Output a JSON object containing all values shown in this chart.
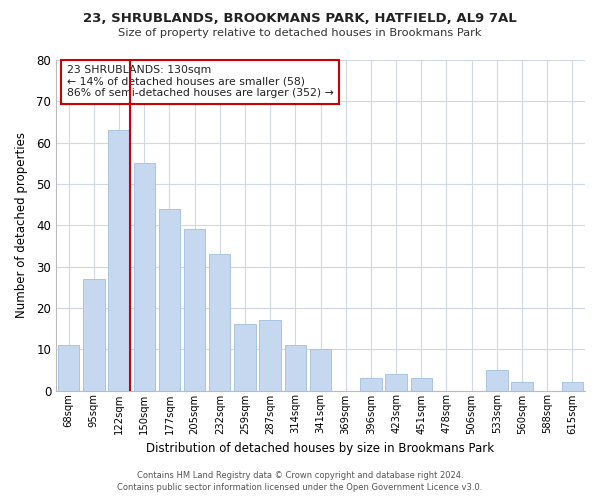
{
  "title": "23, SHRUBLANDS, BROOKMANS PARK, HATFIELD, AL9 7AL",
  "subtitle": "Size of property relative to detached houses in Brookmans Park",
  "xlabel": "Distribution of detached houses by size in Brookmans Park",
  "ylabel": "Number of detached properties",
  "categories": [
    "68sqm",
    "95sqm",
    "122sqm",
    "150sqm",
    "177sqm",
    "205sqm",
    "232sqm",
    "259sqm",
    "287sqm",
    "314sqm",
    "341sqm",
    "369sqm",
    "396sqm",
    "423sqm",
    "451sqm",
    "478sqm",
    "506sqm",
    "533sqm",
    "560sqm",
    "588sqm",
    "615sqm"
  ],
  "values": [
    11,
    27,
    63,
    55,
    44,
    39,
    33,
    16,
    17,
    11,
    10,
    0,
    3,
    4,
    3,
    0,
    0,
    5,
    2,
    0,
    2
  ],
  "bar_color": "#c5d8f0",
  "bar_edge_color": "#a8c4df",
  "highlight_index": 2,
  "highlight_line_color": "#cc0000",
  "ylim": [
    0,
    80
  ],
  "yticks": [
    0,
    10,
    20,
    30,
    40,
    50,
    60,
    70,
    80
  ],
  "annotation_title": "23 SHRUBLANDS: 130sqm",
  "annotation_line1": "← 14% of detached houses are smaller (58)",
  "annotation_line2": "86% of semi-detached houses are larger (352) →",
  "annotation_box_color": "#ffffff",
  "annotation_box_edge": "#cc0000",
  "footer1": "Contains HM Land Registry data © Crown copyright and database right 2024.",
  "footer2": "Contains public sector information licensed under the Open Government Licence v3.0.",
  "background_color": "#ffffff",
  "grid_color": "#d0d8e8"
}
